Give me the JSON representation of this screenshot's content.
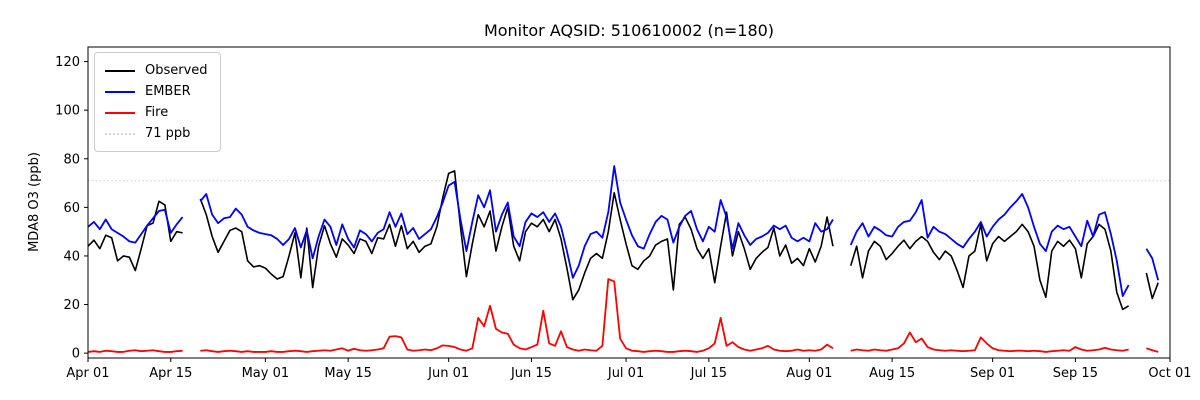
{
  "figure": {
    "title": "Monitor AQSID: 510610002 (n=180)",
    "ylabel": "MDA8 O3 (ppb)"
  },
  "legend": {
    "position": "upper-left",
    "items": [
      {
        "label": "Observed",
        "color": "#000000",
        "style": "solid"
      },
      {
        "label": "EMBER",
        "color": "#0000ff",
        "style": "solid"
      },
      {
        "label": "Fire",
        "color": "#ff0000",
        "style": "solid"
      },
      {
        "label": "71 ppb",
        "color": "#d3d3d3",
        "style": "dotted"
      }
    ]
  },
  "chart_data": {
    "type": "line",
    "title": "Monitor AQSID: 510610002 (n=180)",
    "xlabel": "",
    "ylabel": "MDA8 O3 (ppb)",
    "x_unit": "days since Apr 01",
    "xlim": [
      0,
      183
    ],
    "ylim": [
      -2,
      126
    ],
    "yticks": [
      0,
      20,
      40,
      60,
      80,
      100,
      120
    ],
    "xticks": [
      {
        "label": "Apr 01",
        "day": 0
      },
      {
        "label": "Apr 15",
        "day": 14
      },
      {
        "label": "May 01",
        "day": 30
      },
      {
        "label": "May 15",
        "day": 44
      },
      {
        "label": "Jun 01",
        "day": 61
      },
      {
        "label": "Jun 15",
        "day": 75
      },
      {
        "label": "Jul 01",
        "day": 91
      },
      {
        "label": "Jul 15",
        "day": 105
      },
      {
        "label": "Aug 01",
        "day": 122
      },
      {
        "label": "Aug 15",
        "day": 136
      },
      {
        "label": "Sep 01",
        "day": 153
      },
      {
        "label": "Sep 15",
        "day": 167
      },
      {
        "label": "Oct 01",
        "day": 183
      }
    ],
    "threshold": {
      "value": 71,
      "label": "71 ppb",
      "color": "#d3d3d3",
      "style": "dotted"
    },
    "grid": false,
    "series": [
      {
        "name": "Observed",
        "color": "#000000",
        "width": 1.6,
        "values": [
          44,
          46.5,
          43,
          48.5,
          47.5,
          38,
          40,
          39.5,
          34,
          43,
          52.5,
          53.5,
          62.5,
          61,
          46,
          50,
          49.5,
          null,
          null,
          63.5,
          57,
          48,
          41.5,
          46,
          50.5,
          51.5,
          50,
          38,
          35.5,
          36,
          35,
          32.5,
          30.5,
          31.5,
          40,
          49.5,
          31,
          51.5,
          27,
          44,
          52.5,
          45,
          39.5,
          47,
          44.5,
          41,
          47,
          46,
          41,
          47.5,
          47,
          53,
          44,
          52.5,
          43,
          46,
          41.5,
          44,
          45,
          52,
          64,
          74,
          75,
          52,
          31.5,
          45,
          57,
          52,
          58.5,
          42,
          52,
          60,
          44,
          38,
          50,
          53.5,
          52,
          55,
          50,
          55,
          47,
          35,
          22,
          26,
          33,
          39,
          41,
          39,
          50,
          66,
          55,
          45,
          36,
          34.5,
          38,
          40,
          44.5,
          46,
          47,
          26,
          53,
          56,
          51,
          43,
          39,
          43,
          29,
          44,
          58,
          40,
          50,
          43,
          34.5,
          39,
          41.5,
          43.5,
          51.5,
          40,
          44.5,
          37,
          39,
          36,
          43,
          37.5,
          44,
          56,
          44,
          null,
          null,
          36,
          44,
          31,
          42,
          46,
          44,
          38.5,
          41,
          44,
          46.5,
          43,
          46,
          48,
          46,
          41.5,
          38.5,
          42,
          40,
          34,
          27,
          40,
          42,
          53,
          38,
          45,
          48,
          46,
          48,
          50,
          53,
          50,
          44,
          30,
          23,
          42,
          46,
          44,
          46.5,
          43,
          31,
          45,
          48,
          53,
          51,
          42,
          25,
          18,
          19.5,
          null,
          null,
          33,
          22.5,
          29
        ]
      },
      {
        "name": "EMBER",
        "color": "#0000ff",
        "width": 1.8,
        "values": [
          52,
          54,
          51,
          55,
          51,
          49.5,
          48,
          46,
          45.5,
          49,
          52.5,
          55.5,
          58.5,
          59,
          49.5,
          53,
          56,
          null,
          null,
          62.5,
          65.5,
          57,
          53.5,
          55.5,
          56,
          59.5,
          57,
          52,
          50.5,
          49.5,
          49,
          48.5,
          47,
          44.5,
          47,
          51.5,
          43.5,
          50.5,
          39,
          48,
          55,
          52,
          44.5,
          53,
          47,
          43.5,
          50.5,
          49,
          46,
          49.5,
          51,
          58,
          52,
          57.5,
          49,
          51.5,
          47,
          49,
          51,
          56,
          62,
          69,
          70.5,
          55,
          42,
          54,
          65,
          60,
          67,
          50,
          57,
          62,
          48,
          44,
          54,
          57.5,
          56,
          58,
          54,
          57.5,
          52,
          42,
          31,
          36,
          44,
          49,
          50,
          47.5,
          58,
          77,
          62,
          55,
          48.5,
          44,
          43,
          49,
          54,
          56.5,
          55,
          45.5,
          52,
          56.5,
          58.5,
          51,
          46,
          52,
          50,
          63,
          56,
          43,
          53.5,
          48.5,
          44.5,
          47,
          48,
          49.5,
          52.5,
          51,
          52.5,
          47.5,
          46,
          47.5,
          46,
          53.5,
          50,
          51,
          55,
          null,
          null,
          44.5,
          50,
          53.5,
          48,
          52,
          50.5,
          48.5,
          48,
          52,
          54,
          54.5,
          58,
          63,
          47.5,
          52,
          50,
          49,
          47,
          45,
          43.5,
          47,
          50,
          54,
          48,
          52,
          55,
          57,
          60,
          62.5,
          65.5,
          60,
          52,
          45,
          42,
          50,
          52.5,
          51,
          52,
          48,
          44,
          54.5,
          48,
          57,
          58,
          49,
          38,
          23.5,
          28,
          null,
          null,
          43,
          39,
          30
        ]
      },
      {
        "name": "Fire",
        "color": "#ff0000",
        "width": 1.8,
        "values": [
          0.5,
          0.8,
          0.5,
          1,
          0.8,
          0.5,
          0.5,
          1,
          1.2,
          0.8,
          1,
          1.2,
          0.8,
          0.5,
          0.5,
          0.8,
          1,
          null,
          null,
          1,
          1.2,
          0.8,
          0.5,
          0.8,
          1,
          0.8,
          0.5,
          0.8,
          0.5,
          0.5,
          0.5,
          0.8,
          0.5,
          0.5,
          0.8,
          1,
          0.8,
          0.5,
          0.8,
          1,
          1.2,
          1,
          1.5,
          2,
          1,
          1.8,
          1.2,
          1,
          1.2,
          1.5,
          2,
          6.8,
          7,
          6.5,
          1.5,
          1,
          1.2,
          1.5,
          1.2,
          2,
          3.2,
          3,
          2.5,
          1.5,
          1,
          2,
          14.5,
          11,
          19.5,
          10,
          8.5,
          8,
          3.5,
          2,
          1.5,
          2.5,
          3.5,
          17.5,
          4,
          3,
          9,
          2.5,
          1.5,
          1,
          1.5,
          1.2,
          1,
          3,
          30.5,
          29.5,
          6,
          2,
          1,
          0.8,
          0.5,
          0.8,
          1,
          0.8,
          0.5,
          0.5,
          0.8,
          1,
          0.8,
          0.5,
          1,
          2,
          4,
          14.5,
          3,
          4.5,
          2.5,
          1.5,
          1,
          1.5,
          2,
          3,
          1.5,
          1,
          0.8,
          1,
          1.5,
          1,
          1.2,
          1,
          1.5,
          3.5,
          2,
          null,
          null,
          1,
          1.5,
          1.2,
          1,
          1.5,
          1.2,
          1,
          1.5,
          2,
          4,
          8.5,
          4.5,
          6,
          2.5,
          1.5,
          1.2,
          1,
          1.2,
          1,
          0.8,
          1,
          1.2,
          6.5,
          4,
          2,
          1.2,
          1,
          0.8,
          1,
          1,
          0.8,
          1,
          0.8,
          0.5,
          0.8,
          1,
          1.2,
          1,
          2.5,
          1.5,
          1,
          1.2,
          1.5,
          2.2,
          1.5,
          1.2,
          1,
          1.5,
          null,
          null,
          2,
          1.2,
          0.5
        ]
      }
    ]
  }
}
